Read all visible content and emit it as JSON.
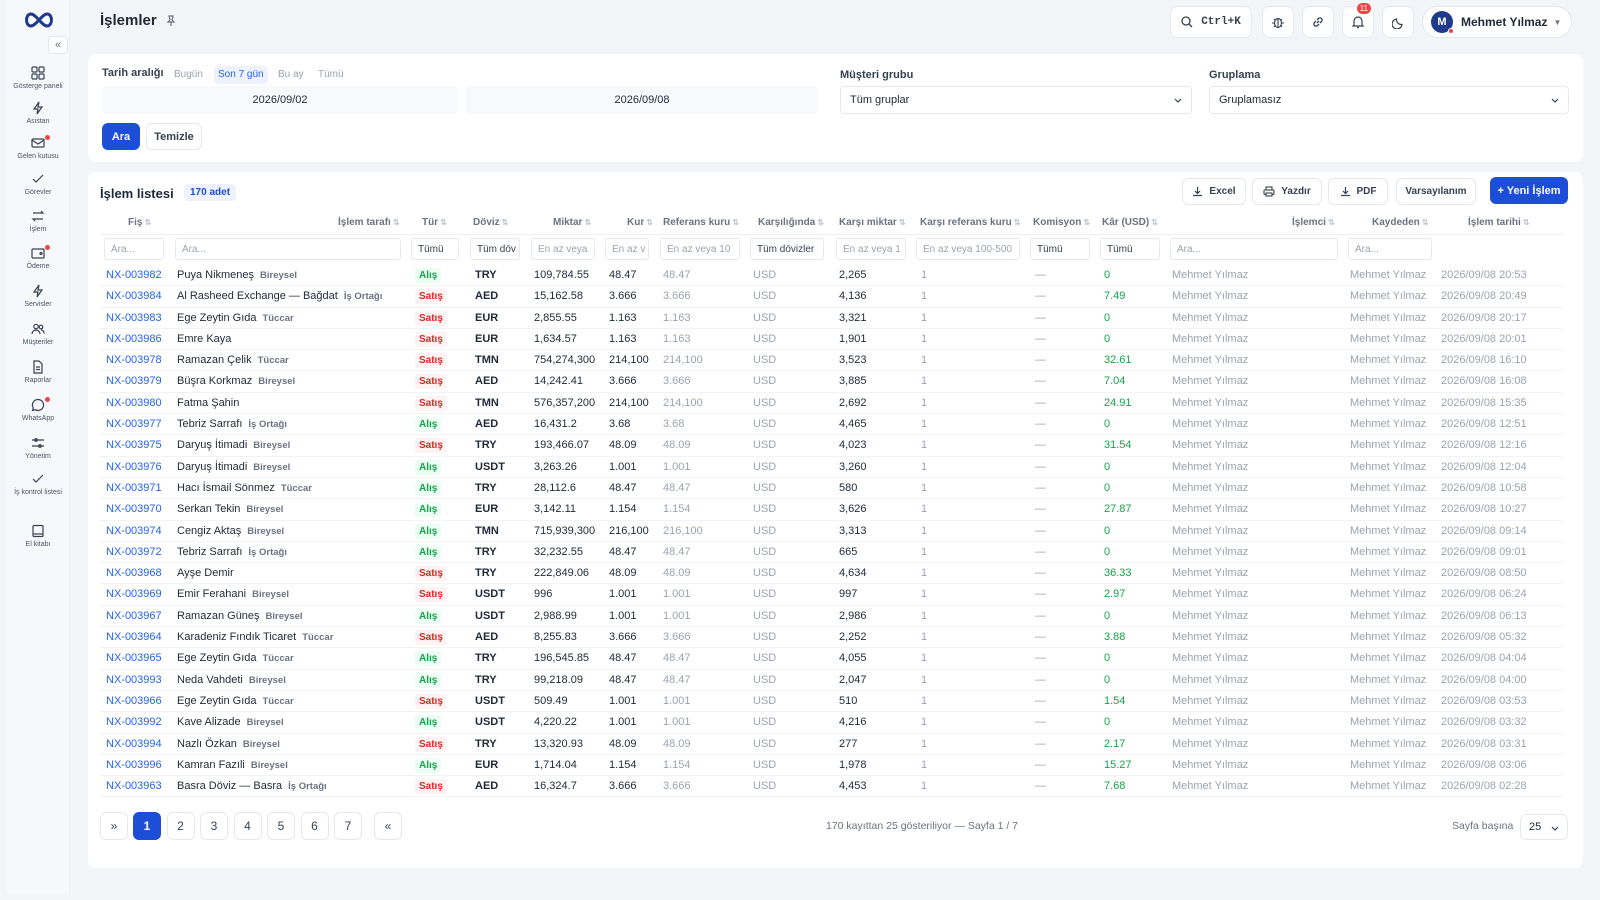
{
  "header": {
    "title": "İşlemler",
    "shortcut": "Ctrl+K",
    "notif_count": "11",
    "user_name": "Mehmet Yılmaz",
    "user_initial": "M"
  },
  "sidebar": {
    "items": [
      {
        "label": "Gösterge paneli",
        "icon": "grid-icon"
      },
      {
        "label": "Asistan",
        "icon": "bolt-icon"
      },
      {
        "label": "Gelen kutusu",
        "icon": "mail-icon"
      },
      {
        "label": "Görevler",
        "icon": "check-icon"
      },
      {
        "label": "İşlem",
        "icon": "swap-icon"
      },
      {
        "label": "Ödeme",
        "icon": "wallet-icon"
      },
      {
        "label": "Servisler",
        "icon": "bolt-icon"
      },
      {
        "label": "Müşteriler",
        "icon": "users-icon"
      },
      {
        "label": "Raporlar",
        "icon": "file-icon"
      },
      {
        "label": "WhatsApp",
        "icon": "chat-icon"
      },
      {
        "label": "Yönetim",
        "icon": "sliders-icon"
      },
      {
        "label": "İş kontrol listesi",
        "icon": "check-icon"
      },
      {
        "label": "El kitabı",
        "icon": "book-icon"
      }
    ]
  },
  "filters": {
    "date_label": "Tarih aralığı",
    "chips": [
      "Bugün",
      "Son 7 gün",
      "Bu ay",
      "Tümü"
    ],
    "date_from": "2026/09/02",
    "date_to": "2026/09/08",
    "group_label": "Müşteri grubu",
    "group_value": "Tüm gruplar",
    "grouping_label": "Gruplama",
    "grouping_value": "Gruplamasız",
    "search_btn": "Ara",
    "clear_btn": "Temizle"
  },
  "list": {
    "title": "İşlem listesi",
    "count": "170 adet",
    "tools": {
      "excel": "Excel",
      "print": "Yazdır",
      "pdf": "PDF",
      "defaults": "Varsayılanım",
      "new": "+ Yeni İşlem"
    },
    "columns": [
      "Fiş",
      "İşlem tarafı",
      "Tür",
      "Döviz",
      "Miktar",
      "Kur",
      "Referans kuru",
      "Karşılığında",
      "Karşı miktar",
      "Karşı referans kuru",
      "Komisyon",
      "Kâr (USD)",
      "İşlemci",
      "Kaydeden",
      "İşlem tarihi"
    ],
    "filter_inputs": {
      "fis": "Ara...",
      "taraf": "Ara...",
      "tur": "Tümü",
      "doviz": "Tüm döv",
      "miktar": "En az veya",
      "kur": "En az v",
      "refkur": "En az veya 10",
      "karsilik": "Tüm dövizler",
      "karsimiktar": "En az veya 1",
      "karsiref": "En az veya 100-500",
      "komisyon": "Tümü",
      "kar": "Tümü",
      "islemci": "Ara...",
      "kaydeden": "Ara..."
    },
    "rows": [
      {
        "fis": "NX-003982",
        "party": "Puya Nikmeneş",
        "ptype": "Bireysel",
        "type": "Alış",
        "cur": "TRY",
        "amount": "109,784.55",
        "rate": "48.47",
        "ref": "48.47",
        "against": "USD",
        "camount": "2,265",
        "cref": "1",
        "com": "—",
        "profit": "0",
        "proc": "Mehmet Yılmaz",
        "rec": "Mehmet Yılmaz",
        "date": "2026/09/08 20:53"
      },
      {
        "fis": "NX-003984",
        "party": "Al Rasheed Exchange — Bağdat",
        "ptype": "İş Ortağı",
        "type": "Satış",
        "cur": "AED",
        "amount": "15,162.58",
        "rate": "3.666",
        "ref": "3.666",
        "against": "USD",
        "camount": "4,136",
        "cref": "1",
        "com": "—",
        "profit": "7.49",
        "proc": "Mehmet Yılmaz",
        "rec": "Mehmet Yılmaz",
        "date": "2026/09/08 20:49"
      },
      {
        "fis": "NX-003983",
        "party": "Ege Zeytin Gıda",
        "ptype": "Tüccar",
        "type": "Satış",
        "cur": "EUR",
        "amount": "2,855.55",
        "rate": "1.163",
        "ref": "1.163",
        "against": "USD",
        "camount": "3,321",
        "cref": "1",
        "com": "—",
        "profit": "0",
        "proc": "Mehmet Yılmaz",
        "rec": "Mehmet Yılmaz",
        "date": "2026/09/08 20:17"
      },
      {
        "fis": "NX-003986",
        "party": "Emre Kaya",
        "ptype": "",
        "type": "Satış",
        "cur": "EUR",
        "amount": "1,634.57",
        "rate": "1.163",
        "ref": "1.163",
        "against": "USD",
        "camount": "1,901",
        "cref": "1",
        "com": "—",
        "profit": "0",
        "proc": "Mehmet Yılmaz",
        "rec": "Mehmet Yılmaz",
        "date": "2026/09/08 20:01"
      },
      {
        "fis": "NX-003978",
        "party": "Ramazan Çelik",
        "ptype": "Tüccar",
        "type": "Satış",
        "cur": "TMN",
        "amount": "754,274,300",
        "rate": "214,100",
        "ref": "214,100",
        "against": "USD",
        "camount": "3,523",
        "cref": "1",
        "com": "—",
        "profit": "32.61",
        "proc": "Mehmet Yılmaz",
        "rec": "Mehmet Yılmaz",
        "date": "2026/09/08 16:10"
      },
      {
        "fis": "NX-003979",
        "party": "Büşra Korkmaz",
        "ptype": "Bireysel",
        "type": "Satış",
        "cur": "AED",
        "amount": "14,242.41",
        "rate": "3.666",
        "ref": "3.666",
        "against": "USD",
        "camount": "3,885",
        "cref": "1",
        "com": "—",
        "profit": "7.04",
        "proc": "Mehmet Yılmaz",
        "rec": "Mehmet Yılmaz",
        "date": "2026/09/08 16:08"
      },
      {
        "fis": "NX-003980",
        "party": "Fatma Şahin",
        "ptype": "",
        "type": "Satış",
        "cur": "TMN",
        "amount": "576,357,200",
        "rate": "214,100",
        "ref": "214,100",
        "against": "USD",
        "camount": "2,692",
        "cref": "1",
        "com": "—",
        "profit": "24.91",
        "proc": "Mehmet Yılmaz",
        "rec": "Mehmet Yılmaz",
        "date": "2026/09/08 15:35"
      },
      {
        "fis": "NX-003977",
        "party": "Tebriz Sarrafı",
        "ptype": "İş Ortağı",
        "type": "Alış",
        "cur": "AED",
        "amount": "16,431.2",
        "rate": "3.68",
        "ref": "3.68",
        "against": "USD",
        "camount": "4,465",
        "cref": "1",
        "com": "—",
        "profit": "0",
        "proc": "Mehmet Yılmaz",
        "rec": "Mehmet Yılmaz",
        "date": "2026/09/08 12:51"
      },
      {
        "fis": "NX-003975",
        "party": "Daryuş İtimadi",
        "ptype": "Bireysel",
        "type": "Satış",
        "cur": "TRY",
        "amount": "193,466.07",
        "rate": "48.09",
        "ref": "48.09",
        "against": "USD",
        "camount": "4,023",
        "cref": "1",
        "com": "—",
        "profit": "31.54",
        "proc": "Mehmet Yılmaz",
        "rec": "Mehmet Yılmaz",
        "date": "2026/09/08 12:16"
      },
      {
        "fis": "NX-003976",
        "party": "Daryuş İtimadi",
        "ptype": "Bireysel",
        "type": "Alış",
        "cur": "USDT",
        "amount": "3,263.26",
        "rate": "1.001",
        "ref": "1.001",
        "against": "USD",
        "camount": "3,260",
        "cref": "1",
        "com": "—",
        "profit": "0",
        "proc": "Mehmet Yılmaz",
        "rec": "Mehmet Yılmaz",
        "date": "2026/09/08 12:04"
      },
      {
        "fis": "NX-003971",
        "party": "Hacı İsmail Sönmez",
        "ptype": "Tüccar",
        "type": "Alış",
        "cur": "TRY",
        "amount": "28,112.6",
        "rate": "48.47",
        "ref": "48.47",
        "against": "USD",
        "camount": "580",
        "cref": "1",
        "com": "—",
        "profit": "0",
        "proc": "Mehmet Yılmaz",
        "rec": "Mehmet Yılmaz",
        "date": "2026/09/08 10:58"
      },
      {
        "fis": "NX-003970",
        "party": "Serkan Tekin",
        "ptype": "Bireysel",
        "type": "Alış",
        "cur": "EUR",
        "amount": "3,142.11",
        "rate": "1.154",
        "ref": "1.154",
        "against": "USD",
        "camount": "3,626",
        "cref": "1",
        "com": "—",
        "profit": "27.87",
        "proc": "Mehmet Yılmaz",
        "rec": "Mehmet Yılmaz",
        "date": "2026/09/08 10:27"
      },
      {
        "fis": "NX-003974",
        "party": "Cengiz Aktaş",
        "ptype": "Bireysel",
        "type": "Alış",
        "cur": "TMN",
        "amount": "715,939,300",
        "rate": "216,100",
        "ref": "216,100",
        "against": "USD",
        "camount": "3,313",
        "cref": "1",
        "com": "—",
        "profit": "0",
        "proc": "Mehmet Yılmaz",
        "rec": "Mehmet Yılmaz",
        "date": "2026/09/08 09:14"
      },
      {
        "fis": "NX-003972",
        "party": "Tebriz Sarrafı",
        "ptype": "İş Ortağı",
        "type": "Alış",
        "cur": "TRY",
        "amount": "32,232.55",
        "rate": "48.47",
        "ref": "48.47",
        "against": "USD",
        "camount": "665",
        "cref": "1",
        "com": "—",
        "profit": "0",
        "proc": "Mehmet Yılmaz",
        "rec": "Mehmet Yılmaz",
        "date": "2026/09/08 09:01"
      },
      {
        "fis": "NX-003968",
        "party": "Ayşe Demir",
        "ptype": "",
        "type": "Satış",
        "cur": "TRY",
        "amount": "222,849.06",
        "rate": "48.09",
        "ref": "48.09",
        "against": "USD",
        "camount": "4,634",
        "cref": "1",
        "com": "—",
        "profit": "36.33",
        "proc": "Mehmet Yılmaz",
        "rec": "Mehmet Yılmaz",
        "date": "2026/09/08 08:50"
      },
      {
        "fis": "NX-003969",
        "party": "Emir Ferahani",
        "ptype": "Bireysel",
        "type": "Satış",
        "cur": "USDT",
        "amount": "996",
        "rate": "1.001",
        "ref": "1.001",
        "against": "USD",
        "camount": "997",
        "cref": "1",
        "com": "—",
        "profit": "2.97",
        "proc": "Mehmet Yılmaz",
        "rec": "Mehmet Yılmaz",
        "date": "2026/09/08 06:24"
      },
      {
        "fis": "NX-003967",
        "party": "Ramazan Güneş",
        "ptype": "Bireysel",
        "type": "Alış",
        "cur": "USDT",
        "amount": "2,988.99",
        "rate": "1.001",
        "ref": "1.001",
        "against": "USD",
        "camount": "2,986",
        "cref": "1",
        "com": "—",
        "profit": "0",
        "proc": "Mehmet Yılmaz",
        "rec": "Mehmet Yılmaz",
        "date": "2026/09/08 06:13"
      },
      {
        "fis": "NX-003964",
        "party": "Karadeniz Fındık Ticaret",
        "ptype": "Tüccar",
        "type": "Satış",
        "cur": "AED",
        "amount": "8,255.83",
        "rate": "3.666",
        "ref": "3.666",
        "against": "USD",
        "camount": "2,252",
        "cref": "1",
        "com": "—",
        "profit": "3.88",
        "proc": "Mehmet Yılmaz",
        "rec": "Mehmet Yılmaz",
        "date": "2026/09/08 05:32"
      },
      {
        "fis": "NX-003965",
        "party": "Ege Zeytin Gıda",
        "ptype": "Tüccar",
        "type": "Alış",
        "cur": "TRY",
        "amount": "196,545.85",
        "rate": "48.47",
        "ref": "48.47",
        "against": "USD",
        "camount": "4,055",
        "cref": "1",
        "com": "—",
        "profit": "0",
        "proc": "Mehmet Yılmaz",
        "rec": "Mehmet Yılmaz",
        "date": "2026/09/08 04:04"
      },
      {
        "fis": "NX-003993",
        "party": "Neda Vahdeti",
        "ptype": "Bireysel",
        "type": "Alış",
        "cur": "TRY",
        "amount": "99,218.09",
        "rate": "48.47",
        "ref": "48.47",
        "against": "USD",
        "camount": "2,047",
        "cref": "1",
        "com": "—",
        "profit": "0",
        "proc": "Mehmet Yılmaz",
        "rec": "Mehmet Yılmaz",
        "date": "2026/09/08 04:00"
      },
      {
        "fis": "NX-003966",
        "party": "Ege Zeytin Gıda",
        "ptype": "Tüccar",
        "type": "Satış",
        "cur": "USDT",
        "amount": "509.49",
        "rate": "1.001",
        "ref": "1.001",
        "against": "USD",
        "camount": "510",
        "cref": "1",
        "com": "—",
        "profit": "1.54",
        "proc": "Mehmet Yılmaz",
        "rec": "Mehmet Yılmaz",
        "date": "2026/09/08 03:53"
      },
      {
        "fis": "NX-003992",
        "party": "Kave Alizade",
        "ptype": "Bireysel",
        "type": "Alış",
        "cur": "USDT",
        "amount": "4,220.22",
        "rate": "1.001",
        "ref": "1.001",
        "against": "USD",
        "camount": "4,216",
        "cref": "1",
        "com": "—",
        "profit": "0",
        "proc": "Mehmet Yılmaz",
        "rec": "Mehmet Yılmaz",
        "date": "2026/09/08 03:32"
      },
      {
        "fis": "NX-003994",
        "party": "Nazlı Özkan",
        "ptype": "Bireysel",
        "type": "Satış",
        "cur": "TRY",
        "amount": "13,320.93",
        "rate": "48.09",
        "ref": "48.09",
        "against": "USD",
        "camount": "277",
        "cref": "1",
        "com": "—",
        "profit": "2.17",
        "proc": "Mehmet Yılmaz",
        "rec": "Mehmet Yılmaz",
        "date": "2026/09/08 03:31"
      },
      {
        "fis": "NX-003996",
        "party": "Kamran Fazıli",
        "ptype": "Bireysel",
        "type": "Alış",
        "cur": "EUR",
        "amount": "1,714.04",
        "rate": "1.154",
        "ref": "1.154",
        "against": "USD",
        "camount": "1,978",
        "cref": "1",
        "com": "—",
        "profit": "15.27",
        "proc": "Mehmet Yılmaz",
        "rec": "Mehmet Yılmaz",
        "date": "2026/09/08 03:06"
      },
      {
        "fis": "NX-003963",
        "party": "Basra Döviz — Basra",
        "ptype": "İş Ortağı",
        "type": "Satış",
        "cur": "AED",
        "amount": "16,324.7",
        "rate": "3.666",
        "ref": "3.666",
        "against": "USD",
        "camount": "4,453",
        "cref": "1",
        "com": "—",
        "profit": "7.68",
        "proc": "Mehmet Yılmaz",
        "rec": "Mehmet Yılmaz",
        "date": "2026/09/08 02:28"
      }
    ]
  },
  "pagination": {
    "first": "»",
    "pages": [
      "1",
      "2",
      "3",
      "4",
      "5",
      "6",
      "7"
    ],
    "last": "«",
    "info": "170 kayıttan 25 gösteriliyor — Sayfa 1 / 7",
    "per_page_label": "Sayfa başına",
    "per_page": "25"
  },
  "colors": {
    "accent": "#1d4ed8",
    "buy": "#16a34a",
    "sell": "#dc2626",
    "link": "#2563eb"
  }
}
